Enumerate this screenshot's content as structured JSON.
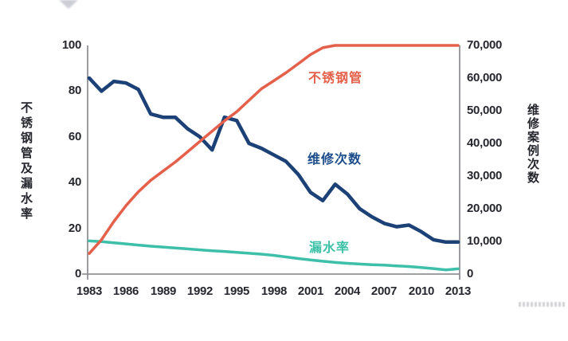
{
  "chart_data": {
    "type": "line",
    "title": "",
    "grid": false,
    "legend_position": "inline-annotations",
    "x": [
      1983,
      1984,
      1985,
      1986,
      1987,
      1988,
      1989,
      1990,
      1991,
      1992,
      1993,
      1994,
      1995,
      1996,
      1997,
      1998,
      1999,
      2000,
      2001,
      2002,
      2003,
      2004,
      2005,
      2006,
      2007,
      2008,
      2009,
      2010,
      2011,
      2012,
      2013
    ],
    "x_tick_years": [
      1983,
      1986,
      1989,
      1992,
      1995,
      1998,
      2001,
      2004,
      2007,
      2010,
      2013
    ],
    "axes": {
      "left": {
        "title": "不锈钢管及漏水率",
        "min": 0,
        "max": 100,
        "ticks": [
          0,
          20,
          40,
          60,
          80,
          100
        ],
        "tick_labels": [
          "0",
          "20",
          "40",
          "60",
          "80",
          "100"
        ]
      },
      "right": {
        "title": "维修案例次数",
        "min": 0,
        "max": 70000,
        "ticks": [
          0,
          10000,
          20000,
          30000,
          40000,
          50000,
          60000,
          70000
        ],
        "tick_labels": [
          "0",
          "10,000",
          "20,000",
          "30,000",
          "40,000",
          "50,000",
          "60,000",
          "70,000"
        ]
      }
    },
    "series": [
      {
        "name": "漏水率",
        "axis": "left",
        "color": "#3dbfa9",
        "label_color": "#3ec2a7",
        "width": 3.5,
        "values": [
          14.5,
          14.2,
          13.7,
          13.2,
          12.7,
          12.2,
          11.8,
          11.4,
          11,
          10.6,
          10.2,
          9.9,
          9.5,
          9.1,
          8.7,
          8.2,
          7.5,
          6.8,
          6.2,
          5.6,
          5.1,
          4.7,
          4.4,
          4.1,
          3.9,
          3.6,
          3.3,
          2.9,
          2.4,
          1.8,
          2.3
        ]
      },
      {
        "name": "维修次数",
        "axis": "right",
        "color": "#1b4176",
        "label_color": "#1d4e8c",
        "width": 4.5,
        "values": [
          60000,
          56000,
          59000,
          58500,
          56500,
          49000,
          48000,
          48000,
          44500,
          42000,
          38000,
          48000,
          47000,
          40000,
          38500,
          36500,
          34500,
          30500,
          25000,
          22500,
          27500,
          24500,
          20000,
          17500,
          15500,
          14500,
          15000,
          13000,
          10500,
          9800,
          9800
        ]
      },
      {
        "name": "不锈钢管",
        "axis": "left",
        "color": "#e5604b",
        "label_color": "#e4604a",
        "width": 3.5,
        "values": [
          9,
          15,
          23,
          30,
          36,
          41,
          45,
          49,
          53.5,
          58,
          62.5,
          67,
          71,
          76,
          81,
          84.5,
          88,
          92,
          96,
          99,
          100,
          100,
          100,
          100,
          100,
          100,
          100,
          100,
          100,
          100,
          100
        ]
      }
    ]
  },
  "colors": {
    "axis_line": "#909296",
    "tick_text": "#26272e",
    "background": "#ffffff"
  }
}
